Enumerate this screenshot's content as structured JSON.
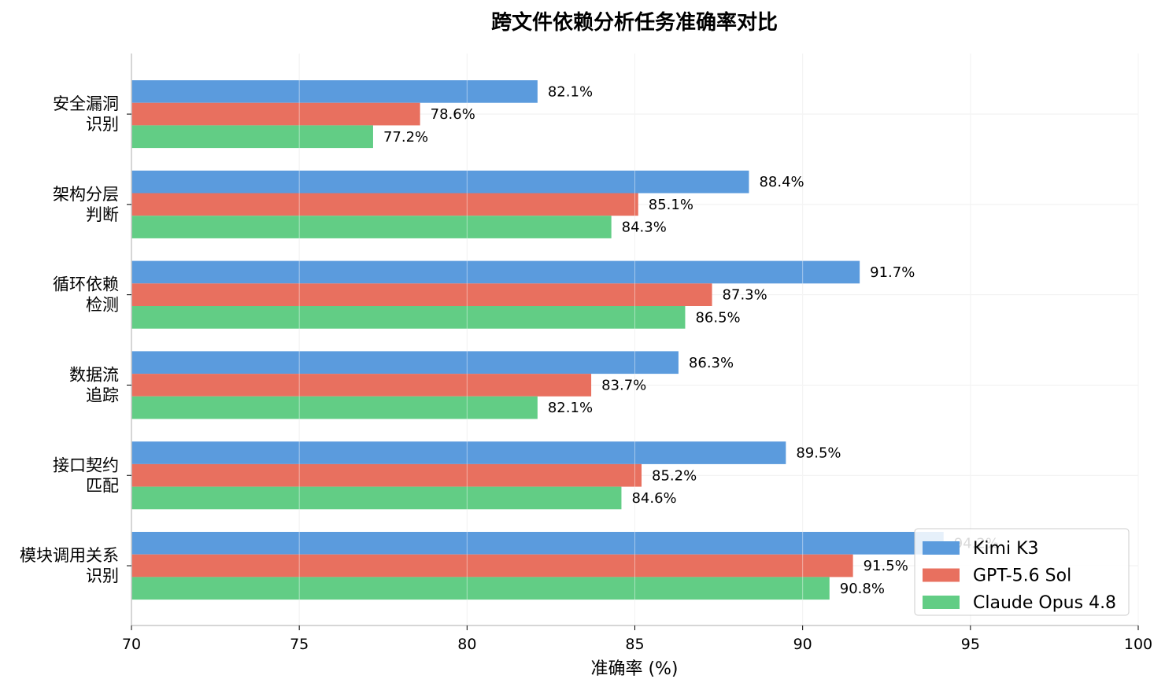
{
  "chart_data": {
    "type": "bar",
    "orientation": "horizontal",
    "title": "跨文件依赖分析任务准确率对比",
    "xlabel": "准确率 (%)",
    "ylabel": "",
    "xlim": [
      70,
      100
    ],
    "xticks": [
      70,
      75,
      80,
      85,
      90,
      95,
      100
    ],
    "grid": true,
    "legend_position": "lower-right",
    "categories": [
      [
        "安全漏洞",
        "识别"
      ],
      [
        "架构分层",
        "判断"
      ],
      [
        "循环依赖",
        "检测"
      ],
      [
        "数据流",
        "追踪"
      ],
      [
        "接口契约",
        "匹配"
      ],
      [
        "模块调用关系",
        "识别"
      ]
    ],
    "series": [
      {
        "name": "Kimi K3",
        "color": "#5b9bdd",
        "values": [
          82.1,
          88.4,
          91.7,
          86.3,
          89.5,
          94.2
        ],
        "labels": [
          "82.1%",
          "88.4%",
          "91.7%",
          "86.3%",
          "89.5%",
          "94.2%"
        ]
      },
      {
        "name": "GPT-5.6 Sol",
        "color": "#e8705f",
        "values": [
          78.6,
          85.1,
          87.3,
          83.7,
          85.2,
          91.5
        ],
        "labels": [
          "78.6%",
          "85.1%",
          "87.3%",
          "83.7%",
          "85.2%",
          "91.5%"
        ]
      },
      {
        "name": "Claude Opus 4.8",
        "color": "#62cd85",
        "values": [
          77.2,
          84.3,
          86.5,
          82.1,
          84.6,
          90.8
        ],
        "labels": [
          "77.2%",
          "84.3%",
          "86.5%",
          "82.1%",
          "84.6%",
          "90.8%"
        ]
      }
    ]
  }
}
